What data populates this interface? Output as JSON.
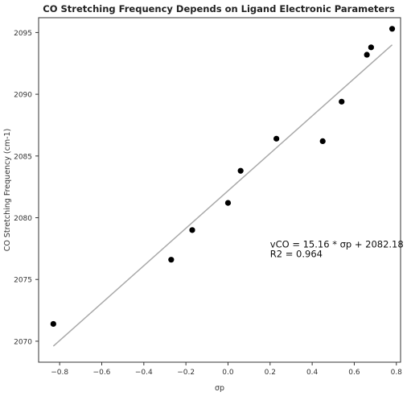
{
  "chart_data": {
    "type": "scatter",
    "title": "CO Stretching Frequency Depends on Ligand Electronic Parameters",
    "xlabel": "σp",
    "ylabel": "CO Stretching Frequency (cm-1)",
    "xlim": [
      -0.9,
      0.82
    ],
    "ylim": [
      2068.3,
      2096.2
    ],
    "xticks": [
      -0.8,
      -0.6,
      -0.4,
      -0.2,
      0.0,
      0.2,
      0.4,
      0.6,
      0.8
    ],
    "xtick_labels": [
      "−0.8",
      "−0.6",
      "−0.4",
      "−0.2",
      "0.0",
      "0.2",
      "0.4",
      "0.6",
      "0.8"
    ],
    "yticks": [
      2070,
      2075,
      2080,
      2085,
      2090,
      2095
    ],
    "ytick_labels": [
      "2070",
      "2075",
      "2080",
      "2085",
      "2090",
      "2095"
    ],
    "grid": false,
    "series": [
      {
        "marker_color": "#000000",
        "points": [
          {
            "x": -0.83,
            "y": 2071.4
          },
          {
            "x": -0.27,
            "y": 2076.6
          },
          {
            "x": -0.17,
            "y": 2079.0
          },
          {
            "x": 0.0,
            "y": 2081.2
          },
          {
            "x": 0.06,
            "y": 2083.8
          },
          {
            "x": 0.23,
            "y": 2086.4
          },
          {
            "x": 0.45,
            "y": 2086.2
          },
          {
            "x": 0.54,
            "y": 2089.4
          },
          {
            "x": 0.66,
            "y": 2093.2
          },
          {
            "x": 0.68,
            "y": 2093.8
          },
          {
            "x": 0.78,
            "y": 2095.3
          }
        ]
      }
    ],
    "fit_line": {
      "color": "#a9a9a9",
      "slope": 15.16,
      "intercept": 2082.18,
      "x_range": [
        -0.83,
        0.78
      ]
    },
    "annotation": {
      "line1": "vCO = 15.16 * σp + 2082.18",
      "line2": "R2 = 0.964",
      "x": 0.2,
      "y": 2077.6
    }
  }
}
